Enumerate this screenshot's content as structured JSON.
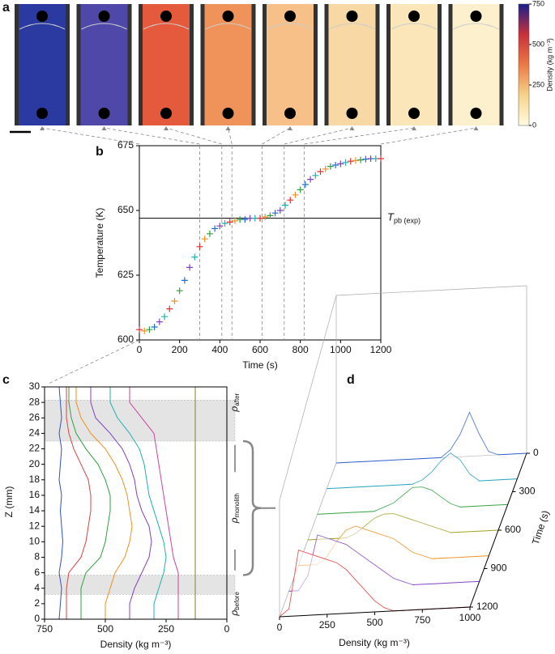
{
  "chart_data": [
    {
      "type": "image-strip",
      "label": "a",
      "image_colors": [
        "#2a3aa0",
        "#5048a8",
        "#e55a3c",
        "#f0935a",
        "#f6c088",
        "#f8d8a4",
        "#fae6b8",
        "#fcf1cc"
      ],
      "colorbar": {
        "title": "Density (kg m⁻³)",
        "lim": [
          0,
          750
        ],
        "ticks": [
          0,
          250,
          500,
          750
        ],
        "colors": [
          "#fffbe2",
          "#f7d389",
          "#ea7a45",
          "#c8303a",
          "#1a1f8c"
        ]
      }
    },
    {
      "type": "scatter",
      "label": "b",
      "x_label": "Time (s)",
      "y_label": "Temperature (K)",
      "x": [
        0,
        25,
        50,
        75,
        100,
        125,
        150,
        175,
        200,
        225,
        250,
        275,
        300,
        325,
        350,
        375,
        400,
        425,
        450,
        475,
        500,
        525,
        550,
        575,
        600,
        625,
        650,
        675,
        700,
        725,
        750,
        775,
        800,
        825,
        850,
        875,
        900,
        925,
        950,
        975,
        1000,
        1025,
        1050,
        1075,
        1100,
        1125,
        1150,
        1175,
        1200
      ],
      "values": [
        604,
        603.5,
        604,
        605,
        607,
        609,
        612,
        615,
        619,
        623,
        628,
        632,
        636,
        639,
        641,
        643,
        644,
        645,
        645.5,
        646,
        646.5,
        646.5,
        647,
        647,
        647,
        647.5,
        648,
        649,
        650,
        652,
        654,
        656,
        658,
        660,
        662,
        663.5,
        665,
        666,
        667,
        667.5,
        668,
        668.5,
        669,
        669.3,
        669.5,
        669.8,
        670,
        670,
        670
      ],
      "colors": [
        "#e03030",
        "#f09020",
        "#30a040",
        "#2070d0",
        "#8040c0",
        "#20b0b0"
      ],
      "xlim": [
        0,
        1200
      ],
      "xticks": [
        0,
        200,
        400,
        600,
        800,
        1000,
        1200
      ],
      "ylim": [
        600,
        675
      ],
      "yticks": [
        600,
        625,
        650,
        675
      ],
      "hline": {
        "value": 647,
        "label": "T",
        "subscript": "pb (exp)"
      },
      "vlines": [
        300,
        410,
        460,
        610,
        720,
        820
      ]
    },
    {
      "type": "profile",
      "label": "c",
      "x_label": "Density (kg m⁻³)",
      "y_label": "Z (mm)",
      "z": [
        0,
        2,
        4,
        6,
        8,
        10,
        12,
        14,
        16,
        18,
        20,
        22,
        24,
        26,
        28,
        30
      ],
      "series": [
        {
          "color": "#3050c0",
          "values": [
            690,
            685,
            680,
            690,
            680,
            675,
            680,
            685,
            680,
            690,
            685,
            680,
            690,
            680,
            685,
            690
          ]
        },
        {
          "color": "#e04040",
          "values": [
            660,
            660,
            660,
            650,
            600,
            580,
            570,
            560,
            560,
            570,
            600,
            630,
            650,
            660,
            660,
            660
          ]
        },
        {
          "color": "#30a040",
          "values": [
            600,
            600,
            600,
            580,
            520,
            500,
            490,
            480,
            480,
            500,
            530,
            580,
            620,
            640,
            650,
            650
          ]
        },
        {
          "color": "#f09020",
          "values": [
            500,
            500,
            480,
            460,
            420,
            400,
            390,
            400,
            410,
            430,
            460,
            500,
            560,
            600,
            620,
            620
          ]
        },
        {
          "color": "#8040c0",
          "values": [
            400,
            400,
            380,
            350,
            320,
            310,
            320,
            350,
            370,
            380,
            400,
            430,
            480,
            540,
            560,
            560
          ]
        },
        {
          "color": "#20b0b0",
          "values": [
            300,
            300,
            280,
            260,
            250,
            260,
            280,
            300,
            320,
            330,
            340,
            360,
            400,
            450,
            480,
            480
          ]
        },
        {
          "color": "#d040a0",
          "values": [
            200,
            200,
            200,
            200,
            220,
            230,
            240,
            250,
            260,
            270,
            280,
            290,
            300,
            350,
            400,
            400
          ]
        },
        {
          "color": "#808020",
          "values": [
            130,
            130,
            130,
            130,
            130,
            130,
            130,
            130,
            130,
            130,
            130,
            130,
            130,
            130,
            130,
            130
          ]
        }
      ],
      "xlim": [
        750,
        0
      ],
      "xticks": [
        750,
        500,
        250,
        0
      ],
      "ylim": [
        0,
        30
      ],
      "yticks": [
        0,
        2,
        4,
        6,
        8,
        10,
        12,
        14,
        16,
        18,
        20,
        22,
        24,
        26,
        28,
        30
      ],
      "shaded": [
        [
          23,
          28.3
        ],
        [
          3.2,
          5.7
        ]
      ],
      "annotations": [
        {
          "symbol": "ρ",
          "subscript": "after"
        },
        {
          "symbol": "ρ",
          "subscript": "monolith"
        },
        {
          "symbol": "ρ",
          "subscript": "before"
        }
      ]
    },
    {
      "type": "waterfall",
      "label": "d",
      "x_label": "Density (kg m⁻³)",
      "y_label": "Time (s)",
      "x": [
        0,
        50,
        100,
        150,
        200,
        250,
        300,
        350,
        400,
        450,
        500,
        550,
        600,
        650,
        700,
        750,
        800,
        850,
        900,
        950,
        1000
      ],
      "series": [
        {
          "t": 0,
          "color": "#3060d0",
          "values": [
            0,
            0,
            0,
            0,
            0,
            0,
            0,
            0,
            0,
            0,
            0,
            0,
            0.1,
            0.3,
            0.6,
            0.3,
            0.05,
            0,
            0,
            0,
            0
          ]
        },
        {
          "t": 200,
          "color": "#20a0c0",
          "values": [
            0,
            0,
            0,
            0,
            0,
            0,
            0,
            0,
            0,
            0,
            0.05,
            0.15,
            0.3,
            0.4,
            0.3,
            0.1,
            0,
            0,
            0,
            0,
            0
          ]
        },
        {
          "t": 400,
          "color": "#30a040",
          "values": [
            0,
            0,
            0,
            0,
            0,
            0,
            0,
            0.05,
            0.1,
            0.2,
            0.3,
            0.3,
            0.25,
            0.15,
            0.05,
            0,
            0,
            0,
            0,
            0,
            0
          ]
        },
        {
          "t": 600,
          "color": "#a0a020",
          "values": [
            0,
            0,
            0,
            0,
            0,
            0.05,
            0.15,
            0.25,
            0.3,
            0.3,
            0.25,
            0.2,
            0.15,
            0.1,
            0.05,
            0,
            0,
            0,
            0,
            0,
            0
          ]
        },
        {
          "t": 800,
          "color": "#f09020",
          "values": [
            0,
            0,
            0,
            0.1,
            0.3,
            0.45,
            0.5,
            0.45,
            0.4,
            0.35,
            0.3,
            0.2,
            0.1,
            0.05,
            0,
            0,
            0,
            0,
            0,
            0,
            0
          ]
        },
        {
          "t": 1000,
          "color": "#8040c0",
          "values": [
            0,
            0,
            0.2,
            0.75,
            0.7,
            0.65,
            0.6,
            0.5,
            0.4,
            0.3,
            0.2,
            0.1,
            0.05,
            0,
            0,
            0,
            0,
            0,
            0,
            0,
            0
          ]
        },
        {
          "t": 1200,
          "color": "#e03030",
          "values": [
            0,
            0.1,
            0.9,
            0.85,
            0.8,
            0.75,
            0.7,
            0.6,
            0.45,
            0.3,
            0.15,
            0.05,
            0,
            0,
            0,
            0,
            0,
            0,
            0,
            0,
            0
          ]
        }
      ],
      "xlim": [
        0,
        1000
      ],
      "xticks": [
        0,
        250,
        500,
        750,
        1000
      ],
      "ylim": [
        0,
        1200
      ],
      "yticks": [
        0,
        300,
        600,
        900,
        1200
      ]
    }
  ]
}
